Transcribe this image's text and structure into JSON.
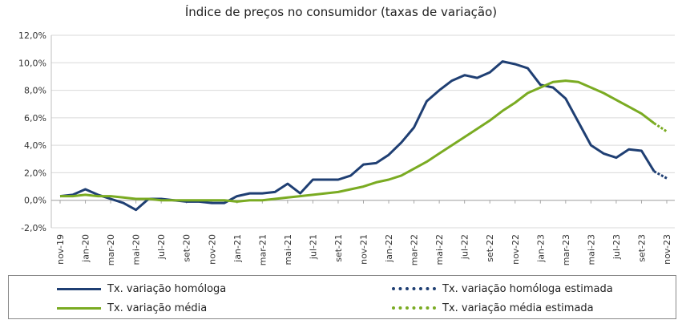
{
  "chart_data": {
    "type": "line",
    "title": "Índice de preços no consumidor  (taxas  de variação)",
    "ylim": [
      -2,
      12
    ],
    "y_ticks": [
      "-2,0%",
      "0,0%",
      "2,0%",
      "4,0%",
      "6,0%",
      "8,0%",
      "10,0%",
      "12,0%"
    ],
    "y_tick_values": [
      -2,
      0,
      2,
      4,
      6,
      8,
      10,
      12
    ],
    "x_tick_labels": [
      "nov-19",
      "jan-20",
      "mar-20",
      "mai-20",
      "jul-20",
      "set-20",
      "nov-20",
      "jan-21",
      "mar-21",
      "mai-21",
      "jul-21",
      "set-21",
      "nov-21",
      "jan-22",
      "mar-22",
      "mai-22",
      "jul-22",
      "set-22",
      "nov-22",
      "jan-23",
      "mar-23",
      "mai-23",
      "jul-23",
      "set-23",
      "nov-23"
    ],
    "months": [
      "nov-19",
      "dez-19",
      "jan-20",
      "fev-20",
      "mar-20",
      "abr-20",
      "mai-20",
      "jun-20",
      "jul-20",
      "ago-20",
      "set-20",
      "out-20",
      "nov-20",
      "dez-20",
      "jan-21",
      "fev-21",
      "mar-21",
      "abr-21",
      "mai-21",
      "jun-21",
      "jul-21",
      "ago-21",
      "set-21",
      "out-21",
      "nov-21",
      "dez-21",
      "jan-22",
      "fev-22",
      "mar-22",
      "abr-22",
      "mai-22",
      "jun-22",
      "jul-22",
      "ago-22",
      "set-22",
      "out-22",
      "nov-22",
      "dez-22",
      "jan-23",
      "fev-23",
      "mar-23",
      "abr-23",
      "mai-23",
      "jun-23",
      "jul-23",
      "ago-23",
      "set-23",
      "out-23",
      "nov-23"
    ],
    "grid": true,
    "legend_position": "bottom",
    "series": [
      {
        "name": "Tx. variação homóloga",
        "color": "#1f3f73",
        "style": "solid",
        "values": [
          0.3,
          0.4,
          0.8,
          0.4,
          0.1,
          -0.2,
          -0.7,
          0.1,
          0.1,
          0.0,
          -0.1,
          -0.1,
          -0.2,
          -0.2,
          0.3,
          0.5,
          0.5,
          0.6,
          1.2,
          0.5,
          1.5,
          1.5,
          1.5,
          1.8,
          2.6,
          2.7,
          3.3,
          4.2,
          5.3,
          7.2,
          8.0,
          8.7,
          9.1,
          8.9,
          9.3,
          10.1,
          9.9,
          9.6,
          8.4,
          8.2,
          7.4,
          5.7,
          4.0,
          3.4,
          3.1,
          3.7,
          3.6,
          2.1,
          null
        ]
      },
      {
        "name": "Tx. variação homóloga estimada",
        "color": "#1f3f73",
        "style": "dotted",
        "values": [
          null,
          null,
          null,
          null,
          null,
          null,
          null,
          null,
          null,
          null,
          null,
          null,
          null,
          null,
          null,
          null,
          null,
          null,
          null,
          null,
          null,
          null,
          null,
          null,
          null,
          null,
          null,
          null,
          null,
          null,
          null,
          null,
          null,
          null,
          null,
          null,
          null,
          null,
          null,
          null,
          null,
          null,
          null,
          null,
          null,
          null,
          null,
          2.1,
          1.6
        ]
      },
      {
        "name": "Tx. variação média",
        "color": "#7aab22",
        "style": "solid",
        "values": [
          0.3,
          0.3,
          0.4,
          0.3,
          0.3,
          0.2,
          0.1,
          0.1,
          0.0,
          0.0,
          0.0,
          0.0,
          0.0,
          0.0,
          -0.1,
          0.0,
          0.0,
          0.1,
          0.2,
          0.3,
          0.4,
          0.5,
          0.6,
          0.8,
          1.0,
          1.3,
          1.5,
          1.8,
          2.3,
          2.8,
          3.4,
          4.0,
          4.6,
          5.2,
          5.8,
          6.5,
          7.1,
          7.8,
          8.2,
          8.6,
          8.7,
          8.6,
          8.2,
          7.8,
          7.3,
          6.8,
          6.3,
          5.6,
          null
        ]
      },
      {
        "name": "Tx. variação média  estimada",
        "color": "#7aab22",
        "style": "dotted",
        "values": [
          null,
          null,
          null,
          null,
          null,
          null,
          null,
          null,
          null,
          null,
          null,
          null,
          null,
          null,
          null,
          null,
          null,
          null,
          null,
          null,
          null,
          null,
          null,
          null,
          null,
          null,
          null,
          null,
          null,
          null,
          null,
          null,
          null,
          null,
          null,
          null,
          null,
          null,
          null,
          null,
          null,
          null,
          null,
          null,
          null,
          null,
          null,
          5.6,
          5.0
        ]
      }
    ]
  },
  "legend": [
    {
      "label": "Tx. variação homóloga",
      "color": "#1f3f73",
      "style": "solid"
    },
    {
      "label": "Tx. variação homóloga estimada",
      "color": "#1f3f73",
      "style": "dotted"
    },
    {
      "label": "Tx. variação média",
      "color": "#7aab22",
      "style": "solid"
    },
    {
      "label": "Tx. variação média  estimada",
      "color": "#7aab22",
      "style": "dotted"
    }
  ]
}
